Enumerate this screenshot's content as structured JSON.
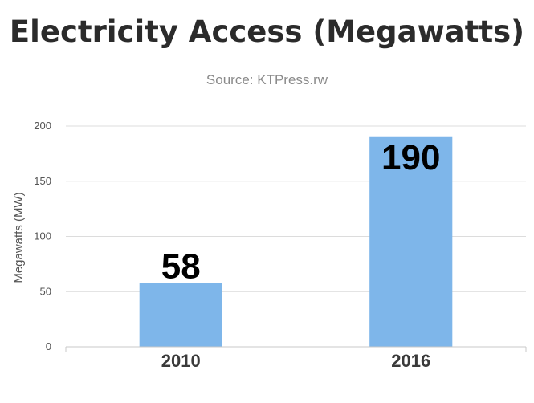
{
  "chart_data": {
    "type": "bar",
    "title": "Electricity Access (Megawatts)",
    "subtitle": "Source: KTPress.rw",
    "xlabel": "",
    "ylabel": "Megawatts (MW)",
    "categories": [
      "2010",
      "2016"
    ],
    "values": [
      58,
      190
    ],
    "data_labels": [
      "58",
      "190"
    ],
    "ylim": [
      0,
      200
    ],
    "yticks": [
      "0",
      "50",
      "100",
      "150",
      "200"
    ],
    "grid": true,
    "legend": "none",
    "bar_color": "#7eb6ea"
  }
}
